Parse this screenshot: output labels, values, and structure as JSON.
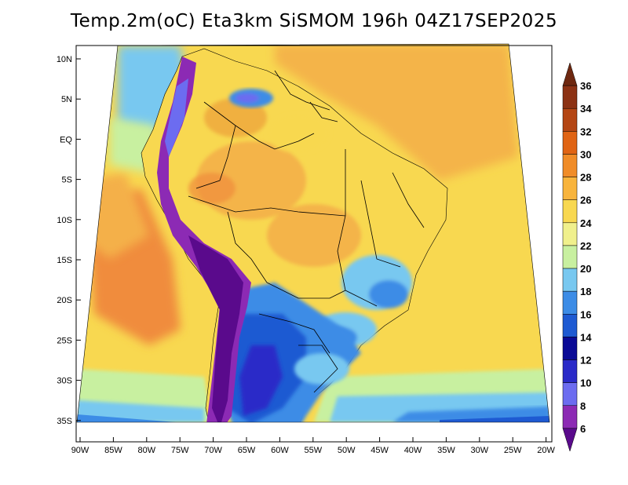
{
  "title": "Temp.2m(oC) Eta3km SiSMOM 196h 04Z17SEP2025",
  "lat_ticks": [
    "10N",
    "5N",
    "EQ",
    "5S",
    "10S",
    "15S",
    "20S",
    "25S",
    "30S",
    "35S"
  ],
  "lon_ticks": [
    "90W",
    "85W",
    "80W",
    "75W",
    "70W",
    "65W",
    "60W",
    "55W",
    "50W",
    "45W",
    "40W",
    "35W",
    "30W",
    "25W",
    "20W"
  ],
  "colorbar": {
    "labels": [
      "6",
      "8",
      "10",
      "12",
      "14",
      "16",
      "18",
      "20",
      "22",
      "24",
      "26",
      "28",
      "30",
      "32",
      "34",
      "36"
    ],
    "colors": [
      "#5a0a8c",
      "#8c2ab4",
      "#6c6cf0",
      "#2a2ac8",
      "#0a0a96",
      "#1e5ad2",
      "#3c8ce6",
      "#78c8f0",
      "#c8f0a0",
      "#f0f08c",
      "#f8d850",
      "#f8b43c",
      "#f08c28",
      "#e06414",
      "#b44614",
      "#8c3214",
      "#6e2810"
    ],
    "min": 6,
    "max": 36,
    "step": 2
  },
  "fields": {
    "ocean_colors": [
      "#f8d850",
      "#f0b040",
      "#f08c3c"
    ],
    "andes_colors": [
      "#5a0a8c",
      "#8c2ab4",
      "#6c6cf0"
    ],
    "south_colors": [
      "#1e5ad2",
      "#3c8ce6",
      "#78c8f0"
    ]
  }
}
